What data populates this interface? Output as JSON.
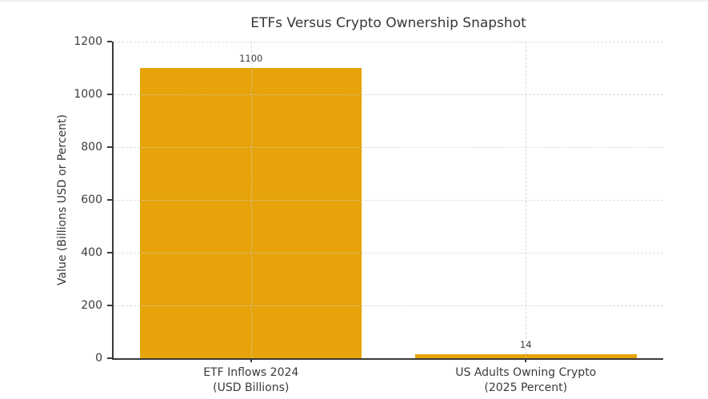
{
  "page": {
    "background": "#ffffff",
    "top_border_color": "#efefef"
  },
  "chart_data": {
    "type": "bar",
    "title": "ETFs Versus Crypto Ownership Snapshot",
    "ylabel": "Value (Billions USD or Percent)",
    "categories": [
      {
        "line1": "ETF Inflows 2024",
        "line2": "(USD Billions)"
      },
      {
        "line1": "US Adults Owning Crypto",
        "line2": "(2025 Percent)"
      }
    ],
    "values": [
      1100,
      14
    ],
    "bar_value_labels": [
      "1100",
      "14"
    ],
    "ylim": [
      0,
      1200
    ],
    "yticks": [
      0,
      200,
      400,
      600,
      800,
      1000,
      1200
    ],
    "bar_color": "#E6A40A",
    "axis_color": "#3a3a3a",
    "text_color": "#3a3a3a",
    "grid": {
      "linestyle": "dashed",
      "color": "#d9d9d9",
      "x": true,
      "y": true,
      "drawn_above_bars": true
    },
    "legend": "none",
    "plot_background": "#ffffff"
  }
}
